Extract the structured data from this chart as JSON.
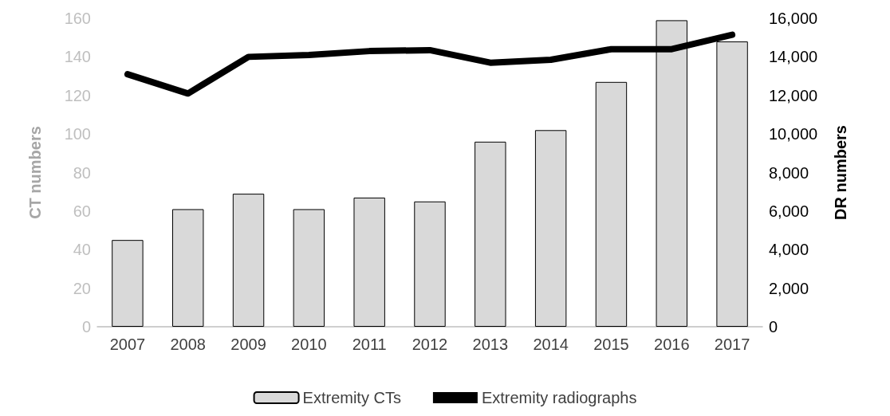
{
  "chart_data": {
    "type": "bar",
    "ylabel": "CT numbers",
    "y2label": "DR numbers",
    "categories": [
      "2007",
      "2008",
      "2009",
      "2010",
      "2011",
      "2012",
      "2013",
      "2014",
      "2015",
      "2016",
      "2017"
    ],
    "series": [
      {
        "name": "Extremity CTs",
        "color": "#d9d9d9",
        "values": [
          45,
          61,
          69,
          61,
          67,
          65,
          96,
          102,
          127,
          159,
          148
        ]
      },
      {
        "name": "Extremity radiographs",
        "type": "line",
        "axis": "y2",
        "color": "#000000",
        "values": [
          13100,
          12100,
          14000,
          14100,
          14300,
          14350,
          13700,
          13850,
          14400,
          14400,
          15150
        ]
      }
    ],
    "ylim": [
      0,
      160
    ],
    "yticks": [
      0,
      20,
      40,
      60,
      80,
      100,
      120,
      140,
      160
    ],
    "y2lim": [
      0,
      16000
    ],
    "y2ticks": [
      {
        "value": 0,
        "label": "0"
      },
      {
        "value": 2000,
        "label": "2,000"
      },
      {
        "value": 4000,
        "label": "4,000"
      },
      {
        "value": 6000,
        "label": "6,000"
      },
      {
        "value": 8000,
        "label": "8,000"
      },
      {
        "value": 10000,
        "label": "10,000"
      },
      {
        "value": 12000,
        "label": "12,000"
      },
      {
        "value": 14000,
        "label": "14,000"
      },
      {
        "value": 16000,
        "label": "16,000"
      }
    ],
    "grid": false,
    "legend": "bottom",
    "marker": "none",
    "line_style": "solid"
  }
}
